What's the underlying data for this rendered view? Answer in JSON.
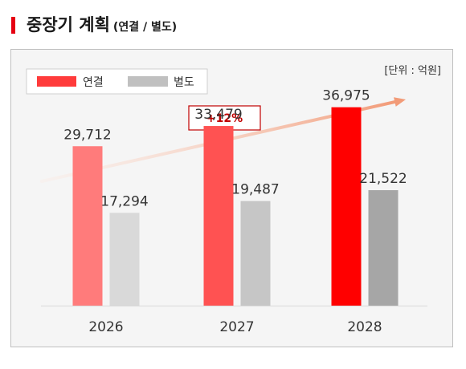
{
  "header": {
    "title": "중장기 계획",
    "subtitle": "(연결 / 별도)"
  },
  "colors": {
    "accent": "#e60012",
    "panel_bg": "#f5f5f5",
    "consolidated_bars": [
      "#ff7b7b",
      "#ff5252",
      "#ff0000"
    ],
    "separate_bars": [
      "#d9d9d9",
      "#c6c6c6",
      "#a6a6a6"
    ],
    "legend_consolidated": "#ff3b3b",
    "legend_separate": "#c0c0c0",
    "growth_label": "#c00000"
  },
  "chart_data": {
    "type": "bar",
    "title": "중장기 계획",
    "subtitle": "(연결 / 별도)",
    "unit_label": "[단위 : 억원]",
    "categories": [
      "2026",
      "2027",
      "2028"
    ],
    "series": [
      {
        "name": "연결",
        "values": [
          29712,
          33479,
          36975
        ]
      },
      {
        "name": "별도",
        "values": [
          17294,
          19487,
          21522
        ]
      }
    ],
    "data_labels": [
      [
        "29,712",
        "33,479",
        "36,975"
      ],
      [
        "17,294",
        "19,487",
        "21,522"
      ]
    ],
    "ylim": [
      0,
      45000
    ],
    "grid": false,
    "legend": "top-left",
    "annotation": {
      "text": "+12%",
      "type": "growth-arrow"
    }
  }
}
